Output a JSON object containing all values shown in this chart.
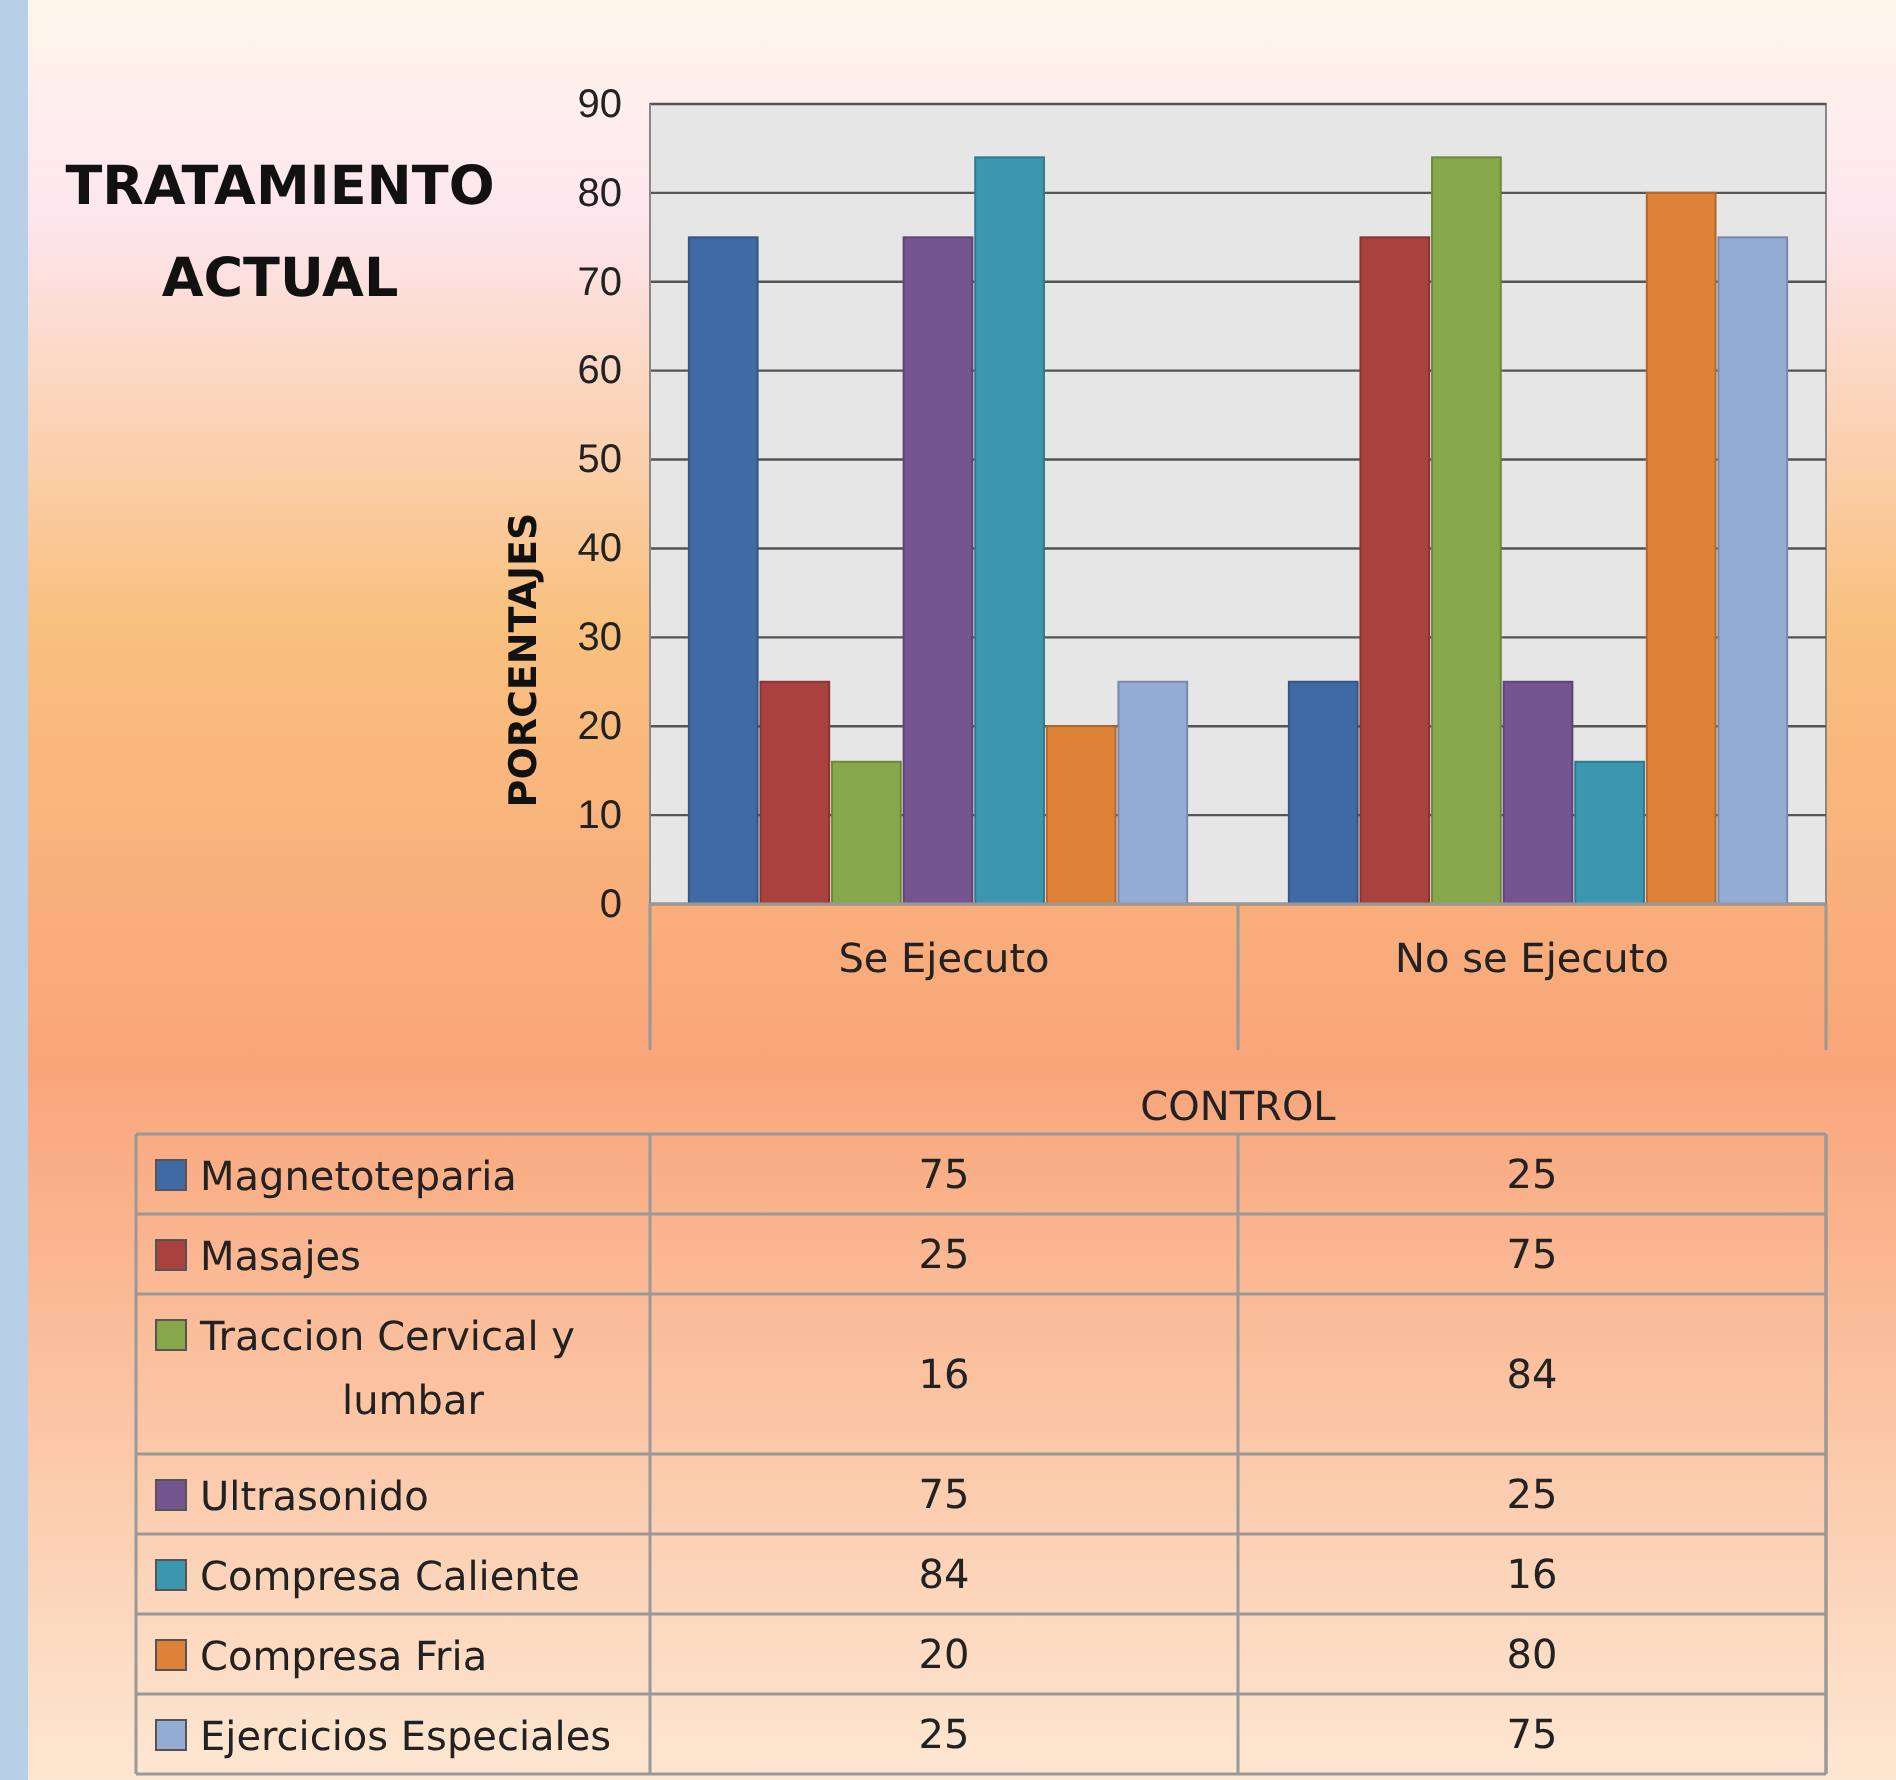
{
  "chart_data": {
    "type": "bar",
    "title": "TRATAMIENTO ACTUAL",
    "xlabel": "CONTROL",
    "ylabel": "PORCENTAJES",
    "categories": [
      "Se Ejecuto",
      "No se Ejecuto"
    ],
    "series": [
      {
        "name": "Magnetoteparia",
        "color": "#3f6aa3",
        "values": [
          75,
          25
        ]
      },
      {
        "name": "Masajes",
        "color": "#a9413f",
        "values": [
          25,
          75
        ]
      },
      {
        "name": "Traccion Cervical y lumbar",
        "color": "#87a84a",
        "values": [
          16,
          84
        ]
      },
      {
        "name": "Ultrasonido",
        "color": "#74558f",
        "values": [
          75,
          25
        ]
      },
      {
        "name": "Compresa Caliente",
        "color": "#3a97ae",
        "values": [
          84,
          16
        ]
      },
      {
        "name": "Compresa Fria",
        "color": "#dd8237",
        "values": [
          20,
          80
        ]
      },
      {
        "name": "Ejercicios Especiales",
        "color": "#94abd4",
        "values": [
          25,
          75
        ]
      }
    ],
    "ylim": [
      0,
      90
    ],
    "yticks": [
      0,
      10,
      20,
      30,
      40,
      50,
      60,
      70,
      80,
      90
    ],
    "grid": "y",
    "legend": "bottom",
    "data_labels": true
  }
}
